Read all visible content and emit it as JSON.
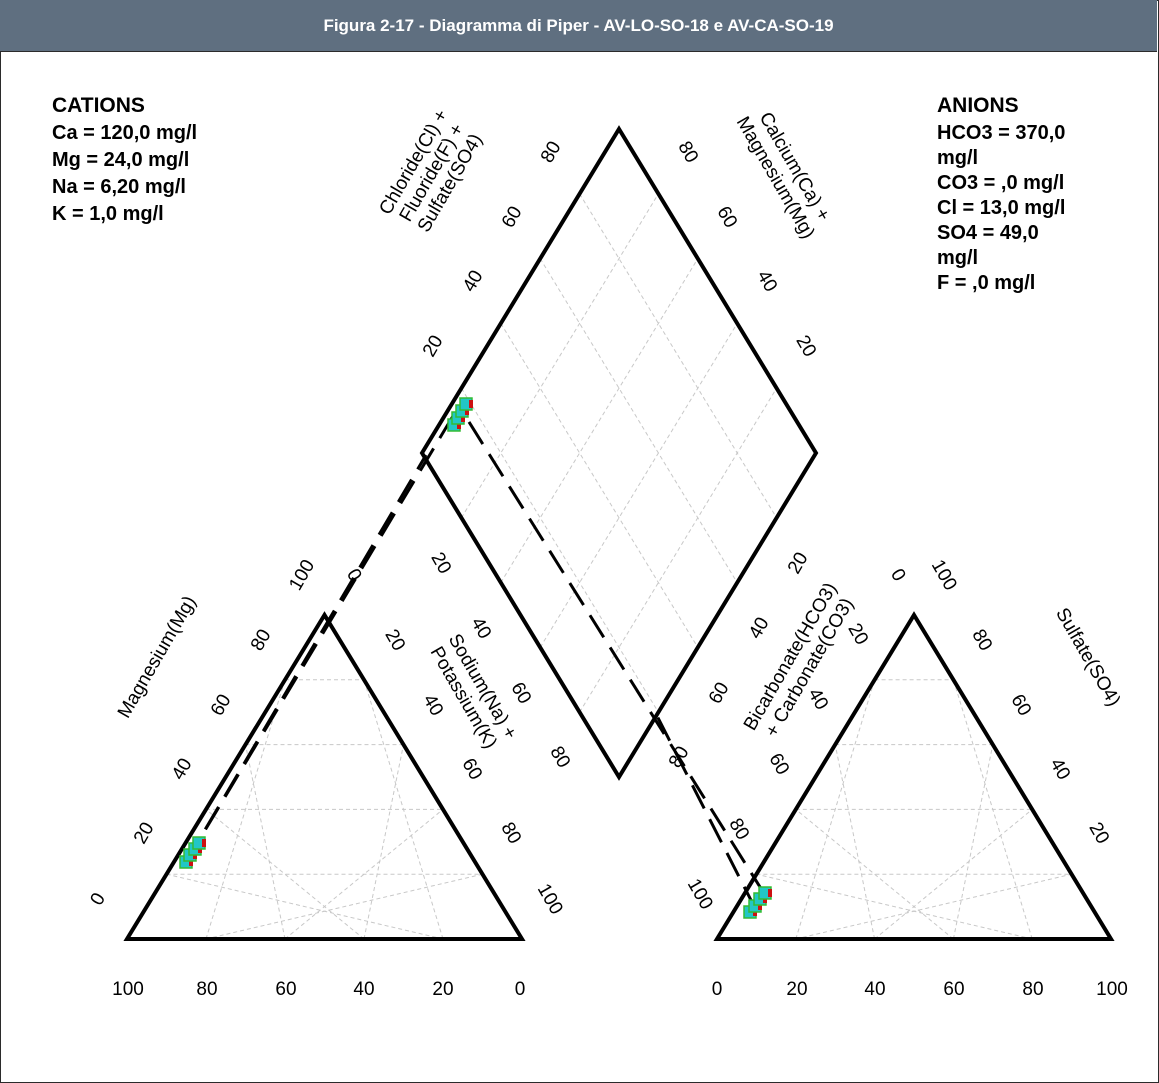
{
  "title": "Figura 2-17 - Diagramma di Piper - AV-LO-SO-18 e AV-CA-SO-19",
  "cations": {
    "heading": "CATIONS",
    "lines": [
      "Ca = 120,0 mg/l",
      "Mg = 24,0 mg/l",
      "Na = 6,20 mg/l",
      "K = 1,0 mg/l"
    ]
  },
  "anions": {
    "heading": "ANIONS",
    "lines": [
      "HCO3 = 370,0",
      "mg/l",
      "CO3 = ,0 mg/l",
      "Cl = 13,0 mg/l",
      "SO4 = 49,0",
      "mg/l",
      "F = ,0 mg/l"
    ]
  },
  "axis_labels": {
    "magnesium": "Magnesium(Mg)",
    "sodium_line1": "Sodium(Na) +",
    "sodium_line2": "Potassium(K)",
    "bicarbonate_line1": "Bicarbonate(HCO3)",
    "bicarbonate_line2": "+ Carbonate(CO3)",
    "sulfate": "Sulfate(SO4)",
    "chloride_line1": "Chloride(Cl) +",
    "chloride_line2": "Fluoride(F) +",
    "chloride_line3": "Sulfate(SO4)",
    "calcium_line1": "Calcium(Ca) +",
    "calcium_line2": "Magnesium(Mg)"
  },
  "ticks": {
    "cation_bottom": [
      "100",
      "80",
      "60",
      "40",
      "20",
      "0"
    ],
    "anion_bottom": [
      "0",
      "20",
      "40",
      "60",
      "80",
      "100"
    ],
    "mg_side": [
      "0",
      "20",
      "40",
      "60",
      "80",
      "100"
    ],
    "na_side": [
      "0",
      "20",
      "40",
      "60",
      "80",
      "100"
    ],
    "hco3_side": [
      "100",
      "80",
      "60",
      "40",
      "20",
      "0"
    ],
    "so4_side": [
      "100",
      "80",
      "60",
      "40",
      "20"
    ],
    "diamond_upper_left": [
      "20",
      "40",
      "60",
      "80"
    ],
    "diamond_upper_right": [
      "80",
      "60",
      "40",
      "20"
    ],
    "diamond_lower_left": [
      "20",
      "40",
      "60",
      "80"
    ],
    "diamond_lower_right": [
      "20",
      "40",
      "60",
      "80"
    ]
  },
  "colors": {
    "header_bg": "#5f6f80",
    "marker_cyan": "#22c6c6",
    "marker_red": "#cc1111",
    "marker_green": "#33bb33"
  },
  "chart_data": {
    "type": "scatter",
    "title": "Figura 2-17 - Diagramma di Piper - AV-LO-SO-18 e AV-CA-SO-19",
    "cation_triangle": {
      "points": [
        {
          "mg": 15,
          "nak": 4
        },
        {
          "mg": 17,
          "nak": 4
        },
        {
          "mg": 19,
          "nak": 4
        },
        {
          "mg": 21,
          "nak": 4
        }
      ]
    },
    "anion_triangle": {
      "points": [
        {
          "so4": 10,
          "cl": 0
        },
        {
          "so4": 11,
          "cl": 1
        },
        {
          "so4": 12,
          "cl": 2
        },
        {
          "so4": 13,
          "cl": 3
        }
      ]
    },
    "diamond": {
      "points": [
        {
          "cl_f_so4": 14,
          "ca_mg": 95
        },
        {
          "cl_f_so4": 16,
          "ca_mg": 95
        },
        {
          "cl_f_so4": 18,
          "ca_mg": 95
        },
        {
          "cl_f_so4": 20,
          "ca_mg": 95
        }
      ]
    }
  }
}
